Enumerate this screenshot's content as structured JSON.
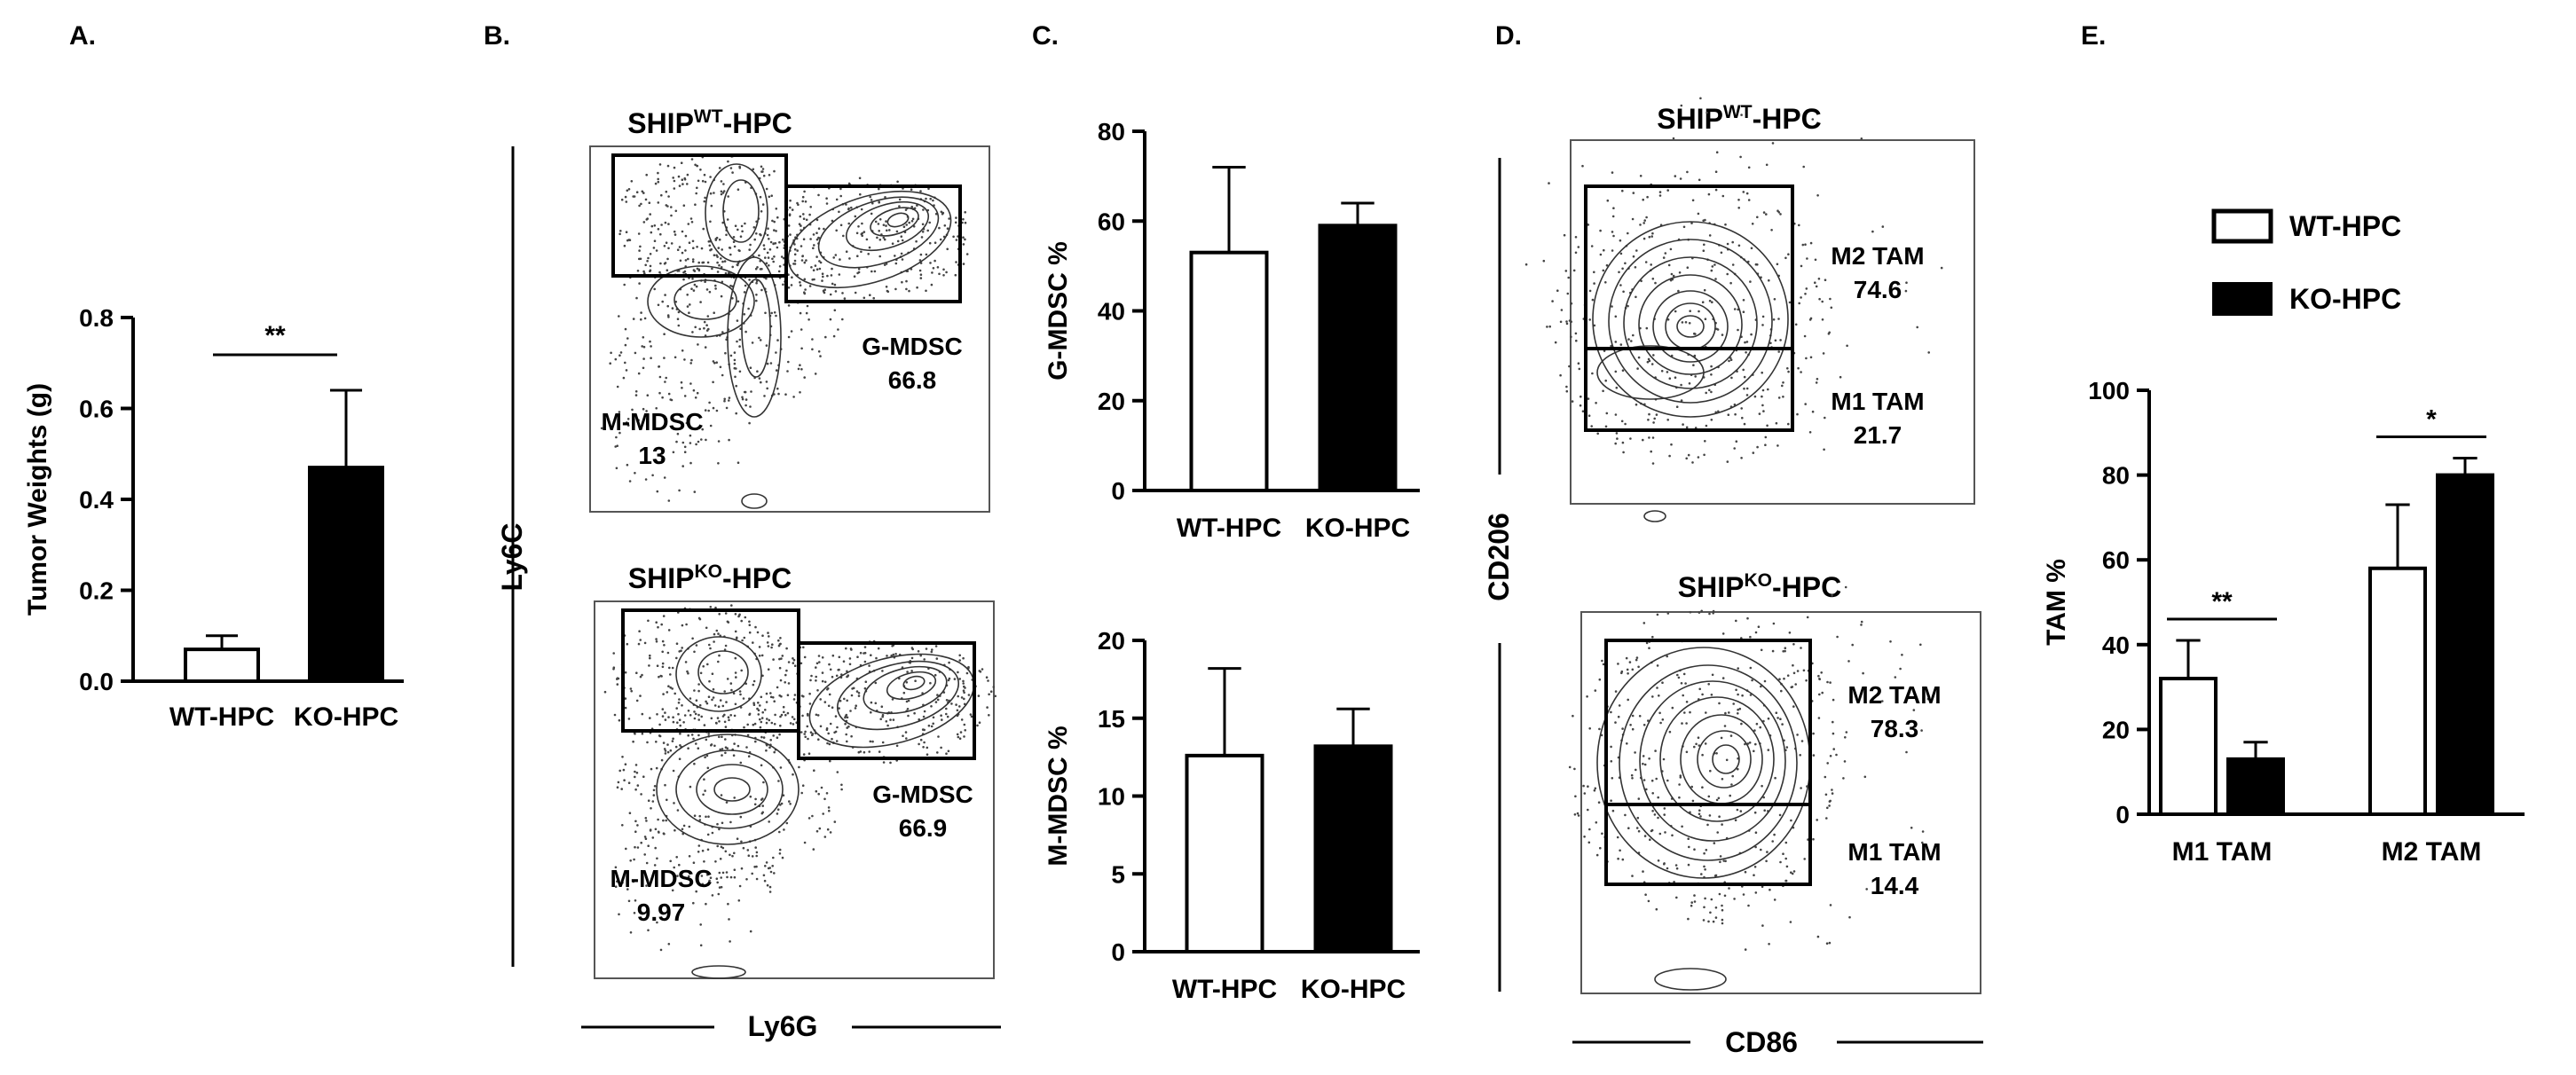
{
  "colors": {
    "wt": "#ffffff",
    "ko": "#000000",
    "stroke": "#000000"
  },
  "legend": {
    "wt": "WT-HPC",
    "ko": "KO-HPC"
  },
  "panels": {
    "a": {
      "letter": "A."
    },
    "b": {
      "letter": "B.",
      "title_top": {
        "pre": "SHIP",
        "sup": "WT",
        "post": "-HPC"
      },
      "title_bottom": {
        "pre": "SHIP",
        "sup": "KO",
        "post": "-HPC"
      },
      "ylabel": "Ly6C",
      "xlabel": "Ly6G",
      "top": {
        "mmdsc_label": "M-MDSC",
        "mmdsc_value": "13",
        "gmdsc_label": "G-MDSC",
        "gmdsc_value": "66.8"
      },
      "bottom": {
        "mmdsc_label": "M-MDSC",
        "mmdsc_value": "9.97",
        "gmdsc_label": "G-MDSC",
        "gmdsc_value": "66.9"
      }
    },
    "c": {
      "letter": "C."
    },
    "d": {
      "letter": "D.",
      "title_top": {
        "pre": "SHIP",
        "sup": "WT",
        "post": "-HPC"
      },
      "title_bottom": {
        "pre": "SHIP",
        "sup": "KO",
        "post": "-HPC"
      },
      "ylabel": "CD206",
      "xlabel": "CD86",
      "top": {
        "m2_label": "M2 TAM",
        "m2_value": "74.6",
        "m1_label": "M1 TAM",
        "m1_value": "21.7"
      },
      "bottom": {
        "m2_label": "M2 TAM",
        "m2_value": "78.3",
        "m1_label": "M1 TAM",
        "m1_value": "14.4"
      }
    },
    "e": {
      "letter": "E."
    }
  },
  "chart_data": [
    {
      "id": "A",
      "type": "bar",
      "categories": [
        "WT-HPC",
        "KO-HPC"
      ],
      "values": [
        0.07,
        0.47
      ],
      "errors": [
        0.03,
        0.17
      ],
      "ylabel": "Tumor Weights (g)",
      "ylim": [
        0,
        0.8
      ],
      "yticks": [
        "0.0",
        "0.2",
        "0.4",
        "0.6",
        "0.8"
      ],
      "significance": [
        {
          "between": [
            0,
            1
          ],
          "label": "**"
        }
      ]
    },
    {
      "id": "C-top",
      "type": "bar",
      "categories": [
        "WT-HPC",
        "KO-HPC"
      ],
      "values": [
        53,
        59
      ],
      "errors": [
        19,
        5
      ],
      "ylabel": "G-MDSC %",
      "ylim": [
        0,
        80
      ],
      "yticks": [
        "0",
        "20",
        "40",
        "60",
        "80"
      ]
    },
    {
      "id": "C-bottom",
      "type": "bar",
      "categories": [
        "WT-HPC",
        "KO-HPC"
      ],
      "values": [
        12.6,
        13.2
      ],
      "errors": [
        5.6,
        2.4
      ],
      "ylabel": "M-MDSC %",
      "ylim": [
        0,
        20
      ],
      "yticks": [
        "0",
        "5",
        "10",
        "15",
        "20"
      ]
    },
    {
      "id": "E",
      "type": "bar",
      "categories": [
        "M1 TAM",
        "M2 TAM"
      ],
      "series": [
        {
          "name": "WT-HPC",
          "values": [
            32,
            58
          ],
          "errors": [
            9,
            15
          ]
        },
        {
          "name": "KO-HPC",
          "values": [
            13,
            80
          ],
          "errors": [
            4,
            4
          ]
        }
      ],
      "ylabel": "TAM %",
      "ylim": [
        0,
        100
      ],
      "yticks": [
        "0",
        "20",
        "40",
        "60",
        "80",
        "100"
      ],
      "legend": "top",
      "significance": [
        {
          "category": 0,
          "label": "**"
        },
        {
          "category": 1,
          "label": "*"
        }
      ]
    }
  ]
}
